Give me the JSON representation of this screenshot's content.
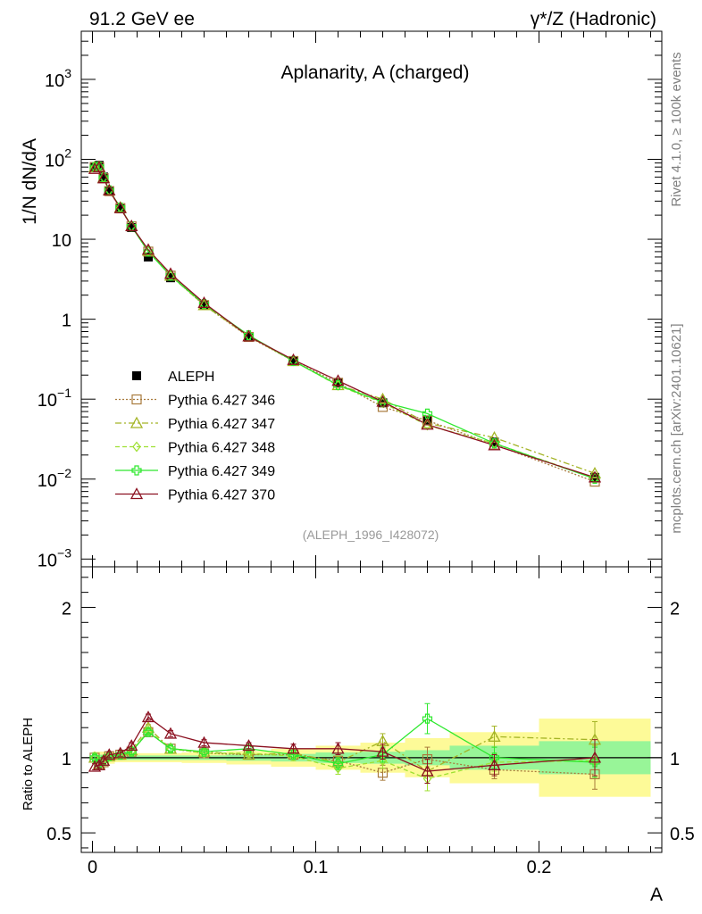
{
  "header": {
    "left": "91.2 GeV ee",
    "right": "γ*/Z (Hadronic)"
  },
  "side_labels": {
    "rivet": "Rivet 4.1.0, ≥ 100k events",
    "mcplots": "mcplots.cern.ch [arXiv:2401.10621]"
  },
  "colors": {
    "aleph": "#000000",
    "p346": "#a87a3c",
    "p347": "#a4b426",
    "p348": "#9ee032",
    "p349": "#2ee82e",
    "p370": "#8b1020",
    "band_yellow": "#fdfa98",
    "band_green": "#98f598"
  },
  "chart_data": [
    {
      "type": "line",
      "title": "Aplanarity, A (charged)",
      "ylabel": "1/N  dN/dA",
      "xlabel": "A",
      "yscale": "log",
      "xlim": [
        -0.005,
        0.255
      ],
      "ylim": [
        0.0008,
        4000
      ],
      "yticks": [
        {
          "value": 0.001,
          "base": "10",
          "exp": "−3"
        },
        {
          "value": 0.01,
          "base": "10",
          "exp": "−2"
        },
        {
          "value": 0.1,
          "base": "10",
          "exp": "−1"
        },
        {
          "value": 1,
          "base": "1",
          "exp": ""
        },
        {
          "value": 10,
          "base": "10",
          "exp": ""
        },
        {
          "value": 100,
          "base": "10",
          "exp": "2"
        },
        {
          "value": 1000,
          "base": "10",
          "exp": "3"
        }
      ],
      "reference": "(ALEPH_1996_I428072)",
      "legend_position": "middle-left",
      "x": [
        0.001,
        0.003,
        0.005,
        0.0075,
        0.0125,
        0.0175,
        0.025,
        0.035,
        0.05,
        0.07,
        0.09,
        0.11,
        0.13,
        0.15,
        0.18,
        0.225
      ],
      "series": [
        {
          "name": "ALEPH",
          "key": "aleph",
          "marker": "square",
          "values": [
            80,
            84,
            60,
            40,
            24,
            14,
            6.0,
            3.3,
            1.5,
            0.6,
            0.3,
            0.16,
            0.09,
            0.055,
            0.029,
            0.0105
          ]
        },
        {
          "name": "Pythia 6.427 346",
          "key": "p346",
          "marker": "open-square",
          "dash": "2,2",
          "values": [
            80,
            80,
            58,
            40,
            24.5,
            14.5,
            7.0,
            3.5,
            1.5,
            0.6,
            0.3,
            0.16,
            0.08,
            0.054,
            0.027,
            0.0093
          ]
        },
        {
          "name": "Pythia 6.427 347",
          "key": "p347",
          "marker": "open-triangle",
          "dash": "7,3,2,3",
          "values": [
            80,
            81,
            59,
            41,
            25,
            14.6,
            7.2,
            3.5,
            1.5,
            0.61,
            0.3,
            0.15,
            0.1,
            0.05,
            0.033,
            0.0118
          ]
        },
        {
          "name": "Pythia 6.427 348",
          "key": "p348",
          "marker": "open-diamond",
          "dash": "5,3",
          "values": [
            80,
            81,
            59,
            41,
            25,
            14.5,
            7.1,
            3.5,
            1.55,
            0.62,
            0.3,
            0.148,
            0.09,
            0.047,
            0.028,
            0.0103
          ]
        },
        {
          "name": "Pythia 6.427 349",
          "key": "p349",
          "marker": "open-cross",
          "dash": "",
          "values": [
            80,
            81,
            59,
            41,
            25,
            14.5,
            7.0,
            3.5,
            1.55,
            0.63,
            0.3,
            0.15,
            0.092,
            0.066,
            0.028,
            0.0101
          ]
        },
        {
          "name": "Pythia 6.427 370",
          "key": "p370",
          "marker": "open-triangle",
          "dash": "",
          "values": [
            76,
            80,
            58,
            41,
            24.5,
            14.6,
            7.4,
            3.7,
            1.6,
            0.61,
            0.31,
            0.17,
            0.093,
            0.048,
            0.0265,
            0.0105
          ]
        }
      ]
    },
    {
      "type": "line",
      "ylabel": "Ratio to ALEPH",
      "xlabel": "A",
      "xlim": [
        -0.005,
        0.255
      ],
      "ylim": [
        0.37,
        2.27
      ],
      "yticks": [
        {
          "value": 0.5,
          "label": "0.5"
        },
        {
          "value": 1,
          "label": "1"
        },
        {
          "value": 2,
          "label": "2"
        }
      ],
      "xticks": [
        {
          "value": 0,
          "label": "0"
        },
        {
          "value": 0.1,
          "label": "0.1"
        },
        {
          "value": 0.2,
          "label": "0.2"
        }
      ],
      "bins": [
        {
          "lo": 0.0,
          "hi": 0.002,
          "y_lo": 0.96,
          "y_hi": 1.04,
          "g_lo": 0.98,
          "g_hi": 1.02
        },
        {
          "lo": 0.002,
          "hi": 0.004,
          "y_lo": 0.96,
          "y_hi": 1.04,
          "g_lo": 0.98,
          "g_hi": 1.02
        },
        {
          "lo": 0.004,
          "hi": 0.006,
          "y_lo": 0.96,
          "y_hi": 1.04,
          "g_lo": 0.98,
          "g_hi": 1.02
        },
        {
          "lo": 0.006,
          "hi": 0.01,
          "y_lo": 0.96,
          "y_hi": 1.04,
          "g_lo": 0.98,
          "g_hi": 1.02
        },
        {
          "lo": 0.01,
          "hi": 0.015,
          "y_lo": 0.97,
          "y_hi": 1.03,
          "g_lo": 0.985,
          "g_hi": 1.015
        },
        {
          "lo": 0.015,
          "hi": 0.02,
          "y_lo": 0.97,
          "y_hi": 1.03,
          "g_lo": 0.985,
          "g_hi": 1.015
        },
        {
          "lo": 0.02,
          "hi": 0.03,
          "y_lo": 0.97,
          "y_hi": 1.03,
          "g_lo": 0.985,
          "g_hi": 1.015
        },
        {
          "lo": 0.03,
          "hi": 0.04,
          "y_lo": 0.97,
          "y_hi": 1.03,
          "g_lo": 0.985,
          "g_hi": 1.015
        },
        {
          "lo": 0.04,
          "hi": 0.06,
          "y_lo": 0.965,
          "y_hi": 1.035,
          "g_lo": 0.985,
          "g_hi": 1.015
        },
        {
          "lo": 0.06,
          "hi": 0.08,
          "y_lo": 0.955,
          "y_hi": 1.045,
          "g_lo": 0.98,
          "g_hi": 1.02
        },
        {
          "lo": 0.08,
          "hi": 0.1,
          "y_lo": 0.94,
          "y_hi": 1.06,
          "g_lo": 0.975,
          "g_hi": 1.025
        },
        {
          "lo": 0.1,
          "hi": 0.12,
          "y_lo": 0.92,
          "y_hi": 1.08,
          "g_lo": 0.965,
          "g_hi": 1.035
        },
        {
          "lo": 0.12,
          "hi": 0.14,
          "y_lo": 0.9,
          "y_hi": 1.1,
          "g_lo": 0.96,
          "g_hi": 1.04
        },
        {
          "lo": 0.14,
          "hi": 0.16,
          "y_lo": 0.87,
          "y_hi": 1.13,
          "g_lo": 0.95,
          "g_hi": 1.05
        },
        {
          "lo": 0.16,
          "hi": 0.2,
          "y_lo": 0.83,
          "y_hi": 1.17,
          "g_lo": 0.92,
          "g_hi": 1.08
        },
        {
          "lo": 0.2,
          "hi": 0.25,
          "y_lo": 0.74,
          "y_hi": 1.26,
          "g_lo": 0.89,
          "g_hi": 1.11
        }
      ],
      "series": [
        {
          "key": "p346",
          "values": [
            1.0,
            0.95,
            0.97,
            1.01,
            1.02,
            1.04,
            1.17,
            1.06,
            1.03,
            1.02,
            1.02,
            0.98,
            0.9,
            0.99,
            0.92,
            0.89
          ],
          "errors": [
            0.02,
            0.02,
            0.02,
            0.02,
            0.02,
            0.02,
            0.02,
            0.02,
            0.02,
            0.02,
            0.02,
            0.03,
            0.05,
            0.08,
            0.06,
            0.1
          ]
        },
        {
          "key": "p347",
          "values": [
            1.0,
            0.96,
            0.98,
            1.01,
            1.02,
            1.05,
            1.2,
            1.06,
            1.04,
            1.02,
            1.03,
            0.97,
            1.11,
            0.91,
            1.14,
            1.12
          ],
          "errors": [
            0.02,
            0.02,
            0.02,
            0.02,
            0.02,
            0.02,
            0.02,
            0.02,
            0.02,
            0.02,
            0.03,
            0.04,
            0.05,
            0.08,
            0.07,
            0.12
          ]
        },
        {
          "key": "p348",
          "values": [
            1.0,
            0.96,
            0.98,
            1.01,
            1.02,
            1.04,
            1.18,
            1.06,
            1.03,
            1.03,
            1.01,
            0.93,
            0.98,
            0.86,
            0.97,
            0.98
          ],
          "errors": [
            0.02,
            0.02,
            0.02,
            0.02,
            0.02,
            0.02,
            0.02,
            0.02,
            0.02,
            0.02,
            0.03,
            0.04,
            0.05,
            0.08,
            0.06,
            0.1
          ]
        },
        {
          "key": "p349",
          "values": [
            1.0,
            0.96,
            0.98,
            1.01,
            1.02,
            1.04,
            1.17,
            1.06,
            1.04,
            1.06,
            1.02,
            0.96,
            1.02,
            1.26,
            1.0,
            0.97
          ],
          "errors": [
            0.02,
            0.02,
            0.02,
            0.02,
            0.02,
            0.02,
            0.02,
            0.02,
            0.02,
            0.02,
            0.03,
            0.04,
            0.05,
            0.1,
            0.07,
            0.1
          ]
        },
        {
          "key": "p370",
          "values": [
            0.94,
            0.95,
            0.98,
            1.02,
            1.03,
            1.08,
            1.27,
            1.16,
            1.1,
            1.08,
            1.06,
            1.06,
            1.04,
            0.91,
            0.95,
            1.0
          ],
          "errors": [
            0.02,
            0.02,
            0.02,
            0.02,
            0.02,
            0.02,
            0.02,
            0.02,
            0.02,
            0.02,
            0.03,
            0.04,
            0.05,
            0.08,
            0.07,
            0.12
          ]
        }
      ]
    }
  ]
}
